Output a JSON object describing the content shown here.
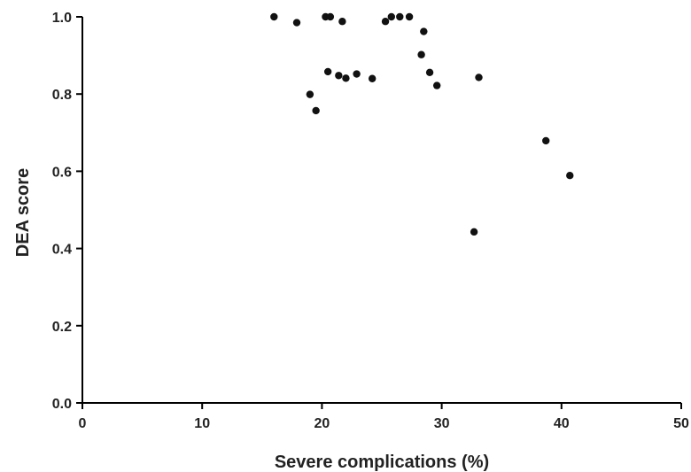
{
  "chart_data": {
    "type": "scatter",
    "xlabel": "Severe complications (%)",
    "ylabel": "DEA score",
    "xlim": [
      0,
      50
    ],
    "ylim": [
      0,
      1.0
    ],
    "x_ticks": [
      0,
      10,
      20,
      30,
      40,
      50
    ],
    "y_ticks": [
      0.0,
      0.2,
      0.4,
      0.6,
      0.8,
      1.0
    ],
    "x_tick_labels": [
      "0",
      "10",
      "20",
      "30",
      "40",
      "50"
    ],
    "y_tick_labels": [
      "0.0",
      "0.2",
      "0.4",
      "0.6",
      "0.8",
      "1.0"
    ],
    "grid": false,
    "legend": "none",
    "series": [
      {
        "points": [
          {
            "x": 16.0,
            "y": 1.0
          },
          {
            "x": 17.9,
            "y": 0.985
          },
          {
            "x": 20.3,
            "y": 1.0
          },
          {
            "x": 20.7,
            "y": 1.0
          },
          {
            "x": 21.7,
            "y": 0.988
          },
          {
            "x": 25.3,
            "y": 0.988
          },
          {
            "x": 25.8,
            "y": 1.0
          },
          {
            "x": 26.5,
            "y": 1.0
          },
          {
            "x": 27.3,
            "y": 1.0
          },
          {
            "x": 28.5,
            "y": 0.962
          },
          {
            "x": 28.3,
            "y": 0.902
          },
          {
            "x": 20.5,
            "y": 0.858
          },
          {
            "x": 21.4,
            "y": 0.848
          },
          {
            "x": 22.0,
            "y": 0.841
          },
          {
            "x": 22.9,
            "y": 0.852
          },
          {
            "x": 24.2,
            "y": 0.84
          },
          {
            "x": 29.0,
            "y": 0.856
          },
          {
            "x": 29.6,
            "y": 0.822
          },
          {
            "x": 33.1,
            "y": 0.843
          },
          {
            "x": 19.0,
            "y": 0.799
          },
          {
            "x": 19.5,
            "y": 0.757
          },
          {
            "x": 38.7,
            "y": 0.679
          },
          {
            "x": 40.7,
            "y": 0.589
          },
          {
            "x": 32.7,
            "y": 0.443
          }
        ]
      }
    ]
  }
}
